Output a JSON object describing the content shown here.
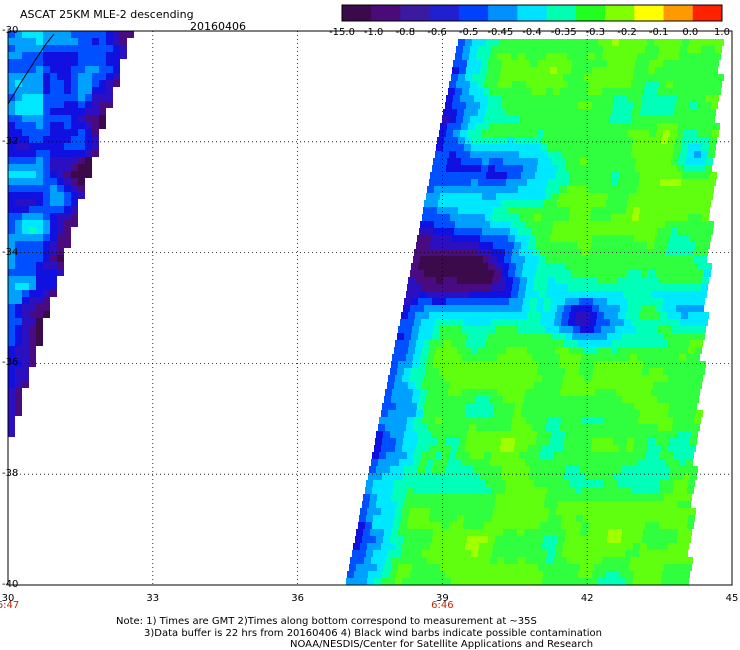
{
  "header": {
    "title": "ASCAT 25KM MLE-2 descending",
    "date": "20160406"
  },
  "colorbar": {
    "ticks": [
      "-15.0",
      "-1.0",
      "-0.8",
      "-0.6",
      "-0.5",
      "-0.45",
      "-0.4",
      "-0.35",
      "-0.3",
      "-0.2",
      "-0.1",
      "0.0",
      "1.0"
    ],
    "colors": [
      "#3a0a4a",
      "#4a0a7a",
      "#3a1aa0",
      "#2020d0",
      "#0040ff",
      "#0090ff",
      "#00e0ff",
      "#00ffb0",
      "#20ff20",
      "#80ff00",
      "#ffff00",
      "#ff9900",
      "#ff2200"
    ]
  },
  "axes": {
    "y_labels": [
      "-30",
      "-32",
      "-34",
      "-36",
      "-38",
      "-40"
    ],
    "x_labels": [
      "30",
      "33",
      "36",
      "39",
      "42",
      "45"
    ],
    "time_labels": [
      {
        "text": "6:47",
        "lon": 30
      },
      {
        "text": "6:46",
        "lon": 39
      }
    ]
  },
  "notes": {
    "line1": "Note: 1) Times are GMT 2)Times along bottom correspond to measurement at ~35S",
    "line2": "3)Data buffer is 22 hrs from 20160406 4) Black wind barbs indicate possible contamination",
    "line3": "NOAA/NESDIS/Center for Satellite Applications and Research"
  }
}
